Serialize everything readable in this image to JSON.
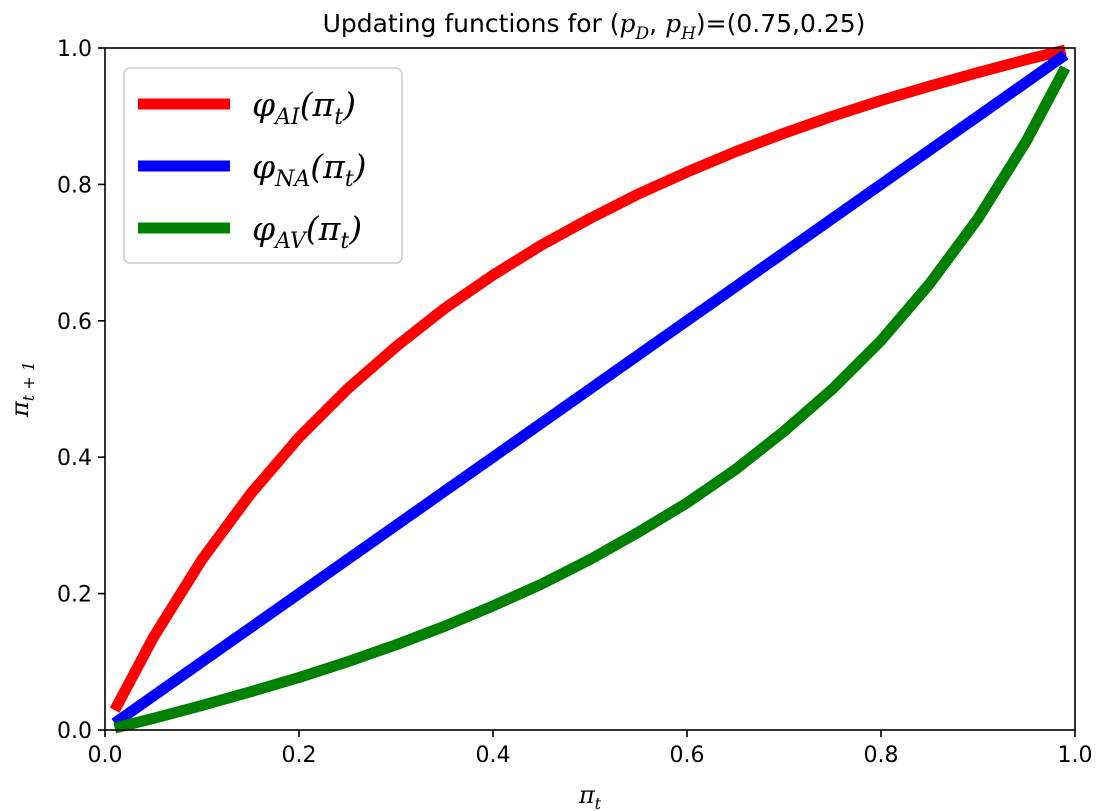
{
  "chart_data": {
    "type": "line",
    "title": {
      "prefix": "Updating functions for (",
      "p1": "p",
      "p1_sub": "D",
      "comma": ", ",
      "p2": "p",
      "p2_sub": "H",
      "suffix": ")=(0.75,0.25)"
    },
    "xlabel": {
      "base": "π",
      "sub": "t"
    },
    "ylabel": {
      "base": "π",
      "sub": "t + 1"
    },
    "xlim": [
      0.0,
      1.0
    ],
    "ylim": [
      0.0,
      1.0
    ],
    "xticks": [
      "0.0",
      "0.2",
      "0.4",
      "0.6",
      "0.8",
      "1.0"
    ],
    "yticks": [
      "0.0",
      "0.2",
      "0.4",
      "0.6",
      "0.8",
      "1.0"
    ],
    "grid": false,
    "legend_position": "top-left",
    "x": [
      0.01,
      0.05,
      0.1,
      0.15,
      0.2,
      0.25,
      0.3,
      0.35,
      0.4,
      0.45,
      0.5,
      0.55,
      0.6,
      0.65,
      0.7,
      0.75,
      0.8,
      0.85,
      0.9,
      0.95,
      0.99
    ],
    "series": [
      {
        "name_base": "φ",
        "name_sub": "AI",
        "name_arg": "(π",
        "name_arg_sub": "t",
        "name_close": ")",
        "color": "#ff0000",
        "values": [
          0.029,
          0.136,
          0.25,
          0.346,
          0.429,
          0.5,
          0.562,
          0.618,
          0.667,
          0.711,
          0.75,
          0.786,
          0.818,
          0.848,
          0.875,
          0.9,
          0.923,
          0.944,
          0.964,
          0.983,
          0.997
        ]
      },
      {
        "name_base": "φ",
        "name_sub": "NA",
        "name_arg": "(π",
        "name_arg_sub": "t",
        "name_close": ")",
        "color": "#0000ff",
        "values": [
          0.01,
          0.05,
          0.1,
          0.15,
          0.2,
          0.25,
          0.3,
          0.35,
          0.4,
          0.45,
          0.5,
          0.55,
          0.6,
          0.65,
          0.7,
          0.75,
          0.8,
          0.85,
          0.9,
          0.95,
          0.99
        ]
      },
      {
        "name_base": "φ",
        "name_sub": "AV",
        "name_arg": "(π",
        "name_arg_sub": "t",
        "name_close": ")",
        "color": "#008000",
        "values": [
          0.003,
          0.017,
          0.036,
          0.056,
          0.077,
          0.1,
          0.125,
          0.152,
          0.182,
          0.214,
          0.25,
          0.29,
          0.333,
          0.382,
          0.438,
          0.5,
          0.571,
          0.654,
          0.75,
          0.864,
          0.971
        ]
      }
    ]
  }
}
